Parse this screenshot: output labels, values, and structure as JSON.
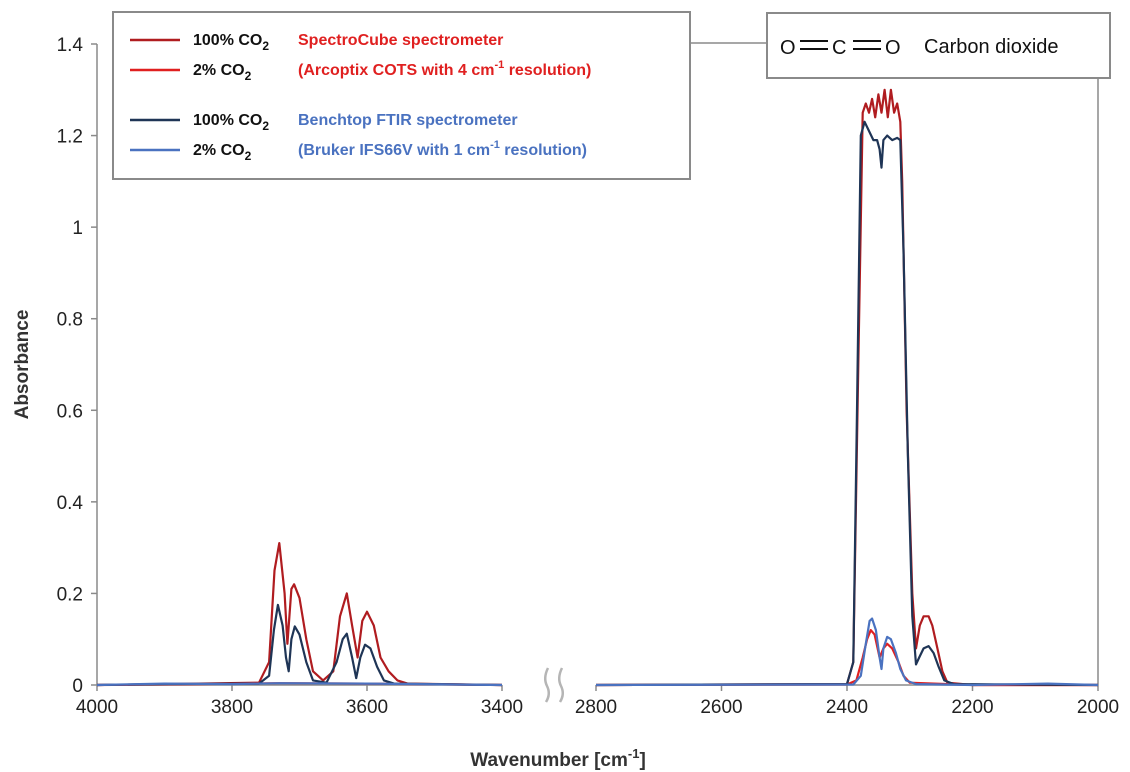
{
  "chart_data": {
    "type": "line",
    "xlabel": "Wavenumber [cm-1]",
    "xlabel_parts": {
      "main": "Wavenumber [cm",
      "sup": "-1",
      "end": "]"
    },
    "ylabel": "Absorbance",
    "x_reversed": true,
    "x_axis_break": [
      3400,
      2800
    ],
    "xlim_left": [
      4000,
      3400
    ],
    "xlim_right": [
      2800,
      2000
    ],
    "ylim": [
      0,
      1.4
    ],
    "grid": false,
    "x_ticks": [
      4000,
      3800,
      3600,
      3400,
      2800,
      2600,
      2400,
      2200,
      2000
    ],
    "y_ticks": [
      0,
      0.2,
      0.4,
      0.6,
      0.8,
      1,
      1.2,
      1.4
    ],
    "y_tick_labels": [
      "0",
      "0.2",
      "0.4",
      "0.6",
      "0.8",
      "1",
      "1.2",
      "1.4"
    ],
    "legend_position": "top-left",
    "molecule": {
      "formula": "O═C═O",
      "atoms": [
        "O",
        "C",
        "O"
      ],
      "name": "Carbon dioxide",
      "position": "top-right"
    },
    "legend_groups": [
      {
        "sample_labels": [
          "100% CO2",
          "2% CO2"
        ],
        "desc1": "SpectroCube spectrometer",
        "desc2": {
          "pre": "(Arcoptix COTS with 4 cm",
          "sup": "-1",
          "post": " resolution)"
        },
        "color": "#e02020"
      },
      {
        "sample_labels": [
          "100% CO2",
          "2% CO2"
        ],
        "desc1": "Benchtop FTIR spectrometer",
        "desc2": {
          "pre": "(Bruker IFS66V with 1 cm",
          "sup": "-1",
          "post": " resolution)"
        },
        "color": "#4a72c0"
      }
    ],
    "series": [
      {
        "name": "100% CO2 SpectroCube spectrometer",
        "color": "#b01c20",
        "points": [
          [
            4000,
            0.0
          ],
          [
            3850,
            0.003
          ],
          [
            3760,
            0.005
          ],
          [
            3745,
            0.05
          ],
          [
            3737,
            0.25
          ],
          [
            3730,
            0.31
          ],
          [
            3722,
            0.2
          ],
          [
            3718,
            0.09
          ],
          [
            3712,
            0.21
          ],
          [
            3708,
            0.22
          ],
          [
            3700,
            0.19
          ],
          [
            3690,
            0.1
          ],
          [
            3680,
            0.03
          ],
          [
            3665,
            0.01
          ],
          [
            3650,
            0.03
          ],
          [
            3640,
            0.15
          ],
          [
            3630,
            0.2
          ],
          [
            3622,
            0.13
          ],
          [
            3614,
            0.06
          ],
          [
            3607,
            0.14
          ],
          [
            3600,
            0.16
          ],
          [
            3590,
            0.13
          ],
          [
            3580,
            0.06
          ],
          [
            3568,
            0.03
          ],
          [
            3555,
            0.01
          ],
          [
            3540,
            0.003
          ],
          [
            3400,
            0.0
          ],
          [
            2800,
            0.0
          ],
          [
            2400,
            0.002
          ],
          [
            2390,
            0.05
          ],
          [
            2382,
            0.7
          ],
          [
            2375,
            1.25
          ],
          [
            2370,
            1.27
          ],
          [
            2365,
            1.25
          ],
          [
            2360,
            1.28
          ],
          [
            2355,
            1.24
          ],
          [
            2350,
            1.29
          ],
          [
            2345,
            1.25
          ],
          [
            2340,
            1.3
          ],
          [
            2335,
            1.24
          ],
          [
            2330,
            1.3
          ],
          [
            2325,
            1.25
          ],
          [
            2320,
            1.27
          ],
          [
            2315,
            1.23
          ],
          [
            2312,
            1.1
          ],
          [
            2305,
            0.6
          ],
          [
            2296,
            0.2
          ],
          [
            2290,
            0.08
          ],
          [
            2284,
            0.13
          ],
          [
            2278,
            0.15
          ],
          [
            2270,
            0.15
          ],
          [
            2264,
            0.13
          ],
          [
            2256,
            0.08
          ],
          [
            2248,
            0.03
          ],
          [
            2240,
            0.005
          ],
          [
            2200,
            0.0
          ],
          [
            2000,
            0.0
          ]
        ]
      },
      {
        "name": "2% CO2 SpectroCube spectrometer",
        "color": "#e02020",
        "points": [
          [
            4000,
            0.0
          ],
          [
            3850,
            0.002
          ],
          [
            3730,
            0.004
          ],
          [
            3600,
            0.003
          ],
          [
            3400,
            0.0
          ],
          [
            2800,
            0.0
          ],
          [
            2400,
            0.001
          ],
          [
            2385,
            0.01
          ],
          [
            2375,
            0.06
          ],
          [
            2368,
            0.1
          ],
          [
            2362,
            0.12
          ],
          [
            2356,
            0.11
          ],
          [
            2348,
            0.06
          ],
          [
            2342,
            0.08
          ],
          [
            2336,
            0.09
          ],
          [
            2328,
            0.08
          ],
          [
            2318,
            0.05
          ],
          [
            2310,
            0.02
          ],
          [
            2300,
            0.005
          ],
          [
            2200,
            0.0
          ],
          [
            2000,
            0.0
          ]
        ]
      },
      {
        "name": "100% CO2 Benchtop FTIR spectrometer",
        "color": "#1f3556",
        "points": [
          [
            4000,
            0.0
          ],
          [
            3900,
            0.002
          ],
          [
            3760,
            0.003
          ],
          [
            3745,
            0.02
          ],
          [
            3738,
            0.12
          ],
          [
            3732,
            0.175
          ],
          [
            3725,
            0.13
          ],
          [
            3720,
            0.06
          ],
          [
            3716,
            0.03
          ],
          [
            3712,
            0.1
          ],
          [
            3707,
            0.128
          ],
          [
            3700,
            0.11
          ],
          [
            3690,
            0.05
          ],
          [
            3680,
            0.01
          ],
          [
            3660,
            0.005
          ],
          [
            3645,
            0.05
          ],
          [
            3636,
            0.1
          ],
          [
            3630,
            0.112
          ],
          [
            3622,
            0.06
          ],
          [
            3616,
            0.015
          ],
          [
            3610,
            0.06
          ],
          [
            3603,
            0.088
          ],
          [
            3595,
            0.08
          ],
          [
            3585,
            0.04
          ],
          [
            3575,
            0.01
          ],
          [
            3560,
            0.003
          ],
          [
            3400,
            0.0
          ],
          [
            2800,
            0.0
          ],
          [
            2400,
            0.002
          ],
          [
            2390,
            0.05
          ],
          [
            2384,
            0.6
          ],
          [
            2378,
            1.2
          ],
          [
            2372,
            1.23
          ],
          [
            2365,
            1.21
          ],
          [
            2358,
            1.19
          ],
          [
            2352,
            1.19
          ],
          [
            2348,
            1.17
          ],
          [
            2345,
            1.13
          ],
          [
            2342,
            1.19
          ],
          [
            2336,
            1.2
          ],
          [
            2328,
            1.19
          ],
          [
            2320,
            1.195
          ],
          [
            2315,
            1.19
          ],
          [
            2310,
            0.95
          ],
          [
            2303,
            0.5
          ],
          [
            2296,
            0.15
          ],
          [
            2290,
            0.045
          ],
          [
            2285,
            0.06
          ],
          [
            2278,
            0.08
          ],
          [
            2270,
            0.085
          ],
          [
            2262,
            0.07
          ],
          [
            2254,
            0.04
          ],
          [
            2245,
            0.01
          ],
          [
            2230,
            0.002
          ],
          [
            2000,
            0.0
          ]
        ]
      },
      {
        "name": "2% CO2 Benchtop FTIR spectrometer",
        "color": "#4a72c0",
        "points": [
          [
            4000,
            0.0
          ],
          [
            3900,
            0.003
          ],
          [
            3800,
            0.002
          ],
          [
            3730,
            0.004
          ],
          [
            3600,
            0.003
          ],
          [
            3400,
            0.0
          ],
          [
            2800,
            0.0
          ],
          [
            2390,
            0.001
          ],
          [
            2378,
            0.02
          ],
          [
            2370,
            0.09
          ],
          [
            2364,
            0.14
          ],
          [
            2360,
            0.145
          ],
          [
            2354,
            0.12
          ],
          [
            2348,
            0.06
          ],
          [
            2345,
            0.035
          ],
          [
            2342,
            0.08
          ],
          [
            2336,
            0.105
          ],
          [
            2330,
            0.1
          ],
          [
            2322,
            0.07
          ],
          [
            2315,
            0.035
          ],
          [
            2306,
            0.01
          ],
          [
            2290,
            0.002
          ],
          [
            2200,
            0.0
          ],
          [
            2080,
            0.003
          ],
          [
            2000,
            0.0
          ]
        ]
      }
    ]
  }
}
